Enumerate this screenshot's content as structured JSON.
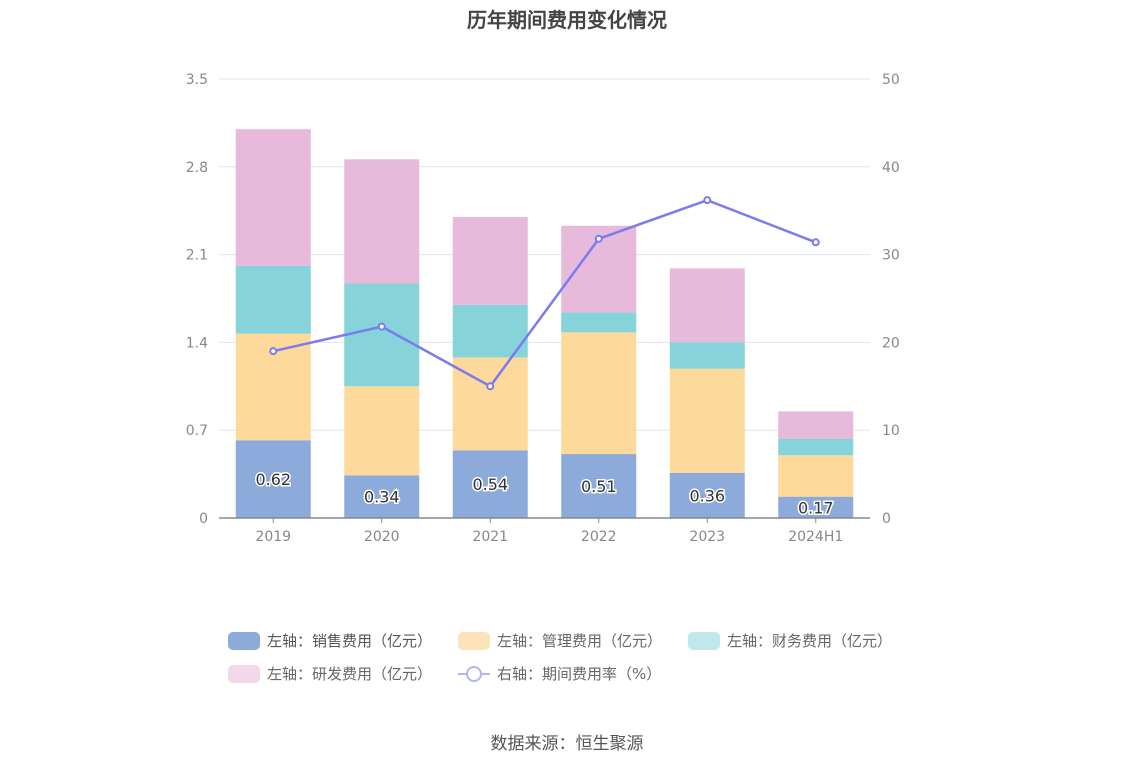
{
  "chart_data": {
    "type": "bar",
    "title": "历年期间费用变化情况",
    "categories": [
      "2019",
      "2020",
      "2021",
      "2022",
      "2023",
      "2024H1"
    ],
    "series": [
      {
        "name": "左轴：销售费用（亿元）",
        "axis": "left",
        "type": "bar",
        "color": "#8dabda",
        "values": [
          0.62,
          0.34,
          0.54,
          0.51,
          0.36,
          0.17
        ],
        "labels": [
          "0.62",
          "0.34",
          "0.54",
          "0.51",
          "0.36",
          "0.17"
        ]
      },
      {
        "name": "左轴：管理费用（亿元）",
        "axis": "left",
        "type": "bar",
        "color": "#fdd99b",
        "values": [
          0.85,
          0.71,
          0.74,
          0.97,
          0.83,
          0.33
        ]
      },
      {
        "name": "左轴：财务费用（亿元）",
        "axis": "left",
        "type": "bar",
        "color": "#86d4d9",
        "values": [
          0.54,
          0.82,
          0.42,
          0.16,
          0.21,
          0.13
        ]
      },
      {
        "name": "左轴：研发费用（亿元）",
        "axis": "left",
        "type": "bar",
        "color": "#e7b9da",
        "values": [
          1.09,
          0.99,
          0.7,
          0.69,
          0.59,
          0.22
        ]
      },
      {
        "name": "右轴：期间费用率（%）",
        "axis": "right",
        "type": "line",
        "color": "#7b7bef",
        "values": [
          19.0,
          21.8,
          15.0,
          31.8,
          36.2,
          31.4
        ]
      }
    ],
    "y_left": {
      "ylim": [
        0,
        3.5
      ],
      "ticks": [
        "0",
        "0.7",
        "1.4",
        "2.1",
        "2.8",
        "3.5"
      ]
    },
    "y_right": {
      "ylim": [
        0,
        50
      ],
      "ticks": [
        "0",
        "10",
        "20",
        "30",
        "40",
        "50"
      ]
    },
    "grid": true,
    "legend_position": "bottom"
  },
  "legend": {
    "sales": "左轴：销售费用（亿元）",
    "admin": "左轴：管理费用（亿元）",
    "finance": "左轴：财务费用（亿元）",
    "rd": "左轴：研发费用（亿元）",
    "rate": "右轴：期间费用率（%）"
  },
  "legend_colors": {
    "sales": "#8dabda",
    "admin": "#fde3b8",
    "finance": "#c0e8ea",
    "rd": "#f2d8ea"
  },
  "source": "数据来源：恒生聚源"
}
